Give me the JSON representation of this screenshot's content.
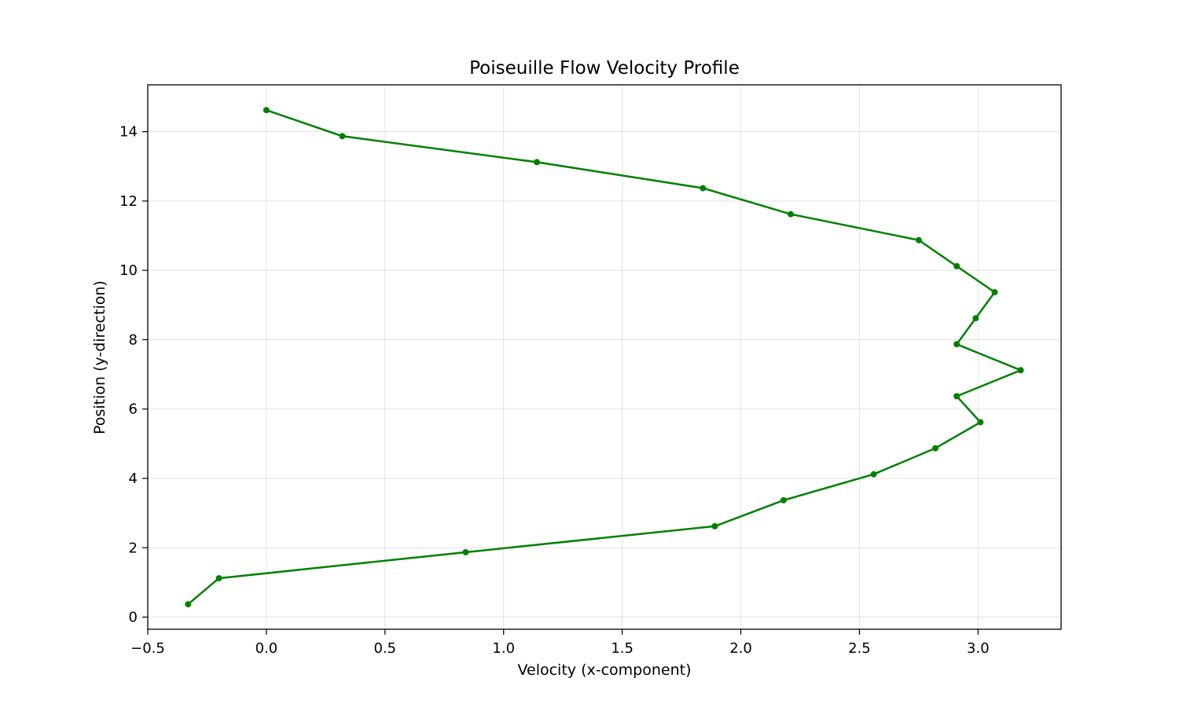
{
  "chart_data": {
    "type": "line",
    "title": "Poiseuille Flow Velocity Profile",
    "xlabel": "Velocity (x-component)",
    "ylabel": "Position (y-direction)",
    "xlim": [
      -0.5,
      3.35
    ],
    "ylim": [
      -0.35,
      15.35
    ],
    "xticks": [
      -0.5,
      0.0,
      0.5,
      1.0,
      1.5,
      2.0,
      2.5,
      3.0
    ],
    "xtick_labels": [
      "−0.5",
      "0.0",
      "0.5",
      "1.0",
      "1.5",
      "2.0",
      "2.5",
      "3.0"
    ],
    "yticks": [
      0,
      2,
      4,
      6,
      8,
      10,
      12,
      14
    ],
    "ytick_labels": [
      "0",
      "2",
      "4",
      "6",
      "8",
      "10",
      "12",
      "14"
    ],
    "grid": true,
    "series": [
      {
        "color": "#008000",
        "marker": "circle",
        "x": [
          -0.33,
          -0.2,
          0.84,
          1.89,
          2.18,
          2.56,
          2.82,
          3.01,
          2.91,
          3.18,
          2.91,
          2.99,
          3.07,
          2.91,
          2.75,
          2.21,
          1.84,
          1.14,
          0.32,
          0.0
        ],
        "y": [
          0.37,
          1.12,
          1.87,
          2.62,
          3.37,
          4.12,
          4.87,
          5.62,
          6.37,
          7.12,
          7.87,
          8.62,
          9.37,
          10.12,
          10.87,
          11.62,
          12.37,
          13.12,
          13.87,
          14.62
        ]
      }
    ]
  }
}
